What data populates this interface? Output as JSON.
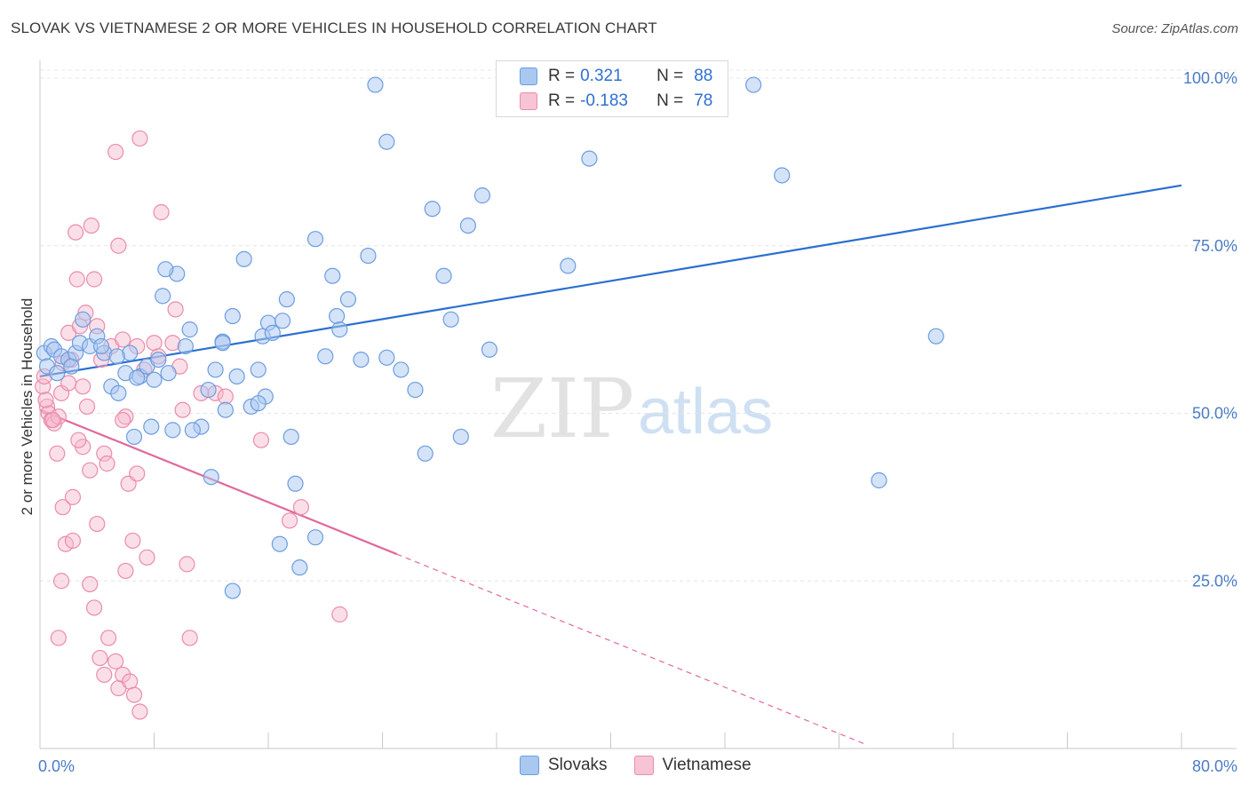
{
  "header": {
    "title": "SLOVAK VS VIETNAMESE 2 OR MORE VEHICLES IN HOUSEHOLD CORRELATION CHART",
    "source": "Source: ZipAtlas.com"
  },
  "legend": {
    "rows": [
      {
        "r_label": "R =",
        "r_value": "0.321",
        "n_label": "N =",
        "n_value": "88"
      },
      {
        "r_label": "R =",
        "r_value": "-0.183",
        "n_label": "N =",
        "n_value": "78"
      }
    ],
    "series_names": [
      "Slovaks",
      "Vietnamese"
    ]
  },
  "watermark": {
    "zip": "ZIP",
    "atlas": "atlas"
  },
  "colors": {
    "slovak_fill": "#a9c8f0",
    "slovak_stroke": "#6c9de0",
    "slovak_line": "#2a6fd0",
    "vietnamese_fill": "#f6b9cc",
    "vietnamese_stroke": "#ea8cab",
    "vietnamese_line": "#e0699a",
    "tick_label": "#4a7cc7",
    "grid": "#e4e4e4"
  },
  "chart_data": {
    "type": "scatter",
    "title": "SLOVAK VS VIETNAMESE 2 OR MORE VEHICLES IN HOUSEHOLD CORRELATION CHART",
    "xlabel": "",
    "ylabel": "2 or more Vehicles in Household",
    "xlim": [
      0,
      80
    ],
    "ylim": [
      0,
      103
    ],
    "x_tick_labels": [
      "0.0%",
      "80.0%"
    ],
    "y_ticks": [
      25,
      50,
      75,
      100
    ],
    "y_tick_labels": [
      "25.0%",
      "50.0%",
      "75.0%",
      "100.0%"
    ],
    "grid": "horizontal dashed",
    "legend_position": "top-center",
    "series": [
      {
        "name": "Slovaks",
        "r": 0.321,
        "n": 88,
        "trend": {
          "x": [
            0,
            80
          ],
          "y": [
            55.5,
            84
          ]
        },
        "points": [
          [
            0.3,
            59
          ],
          [
            0.5,
            57
          ],
          [
            0.8,
            60
          ],
          [
            1.0,
            59.5
          ],
          [
            1.2,
            56
          ],
          [
            1.5,
            58.5
          ],
          [
            2.0,
            58
          ],
          [
            2.2,
            57
          ],
          [
            2.5,
            59
          ],
          [
            2.8,
            60.5
          ],
          [
            3.0,
            64
          ],
          [
            3.5,
            60
          ],
          [
            4.0,
            61.5
          ],
          [
            4.5,
            59
          ],
          [
            5.0,
            54
          ],
          [
            5.5,
            53
          ],
          [
            6.0,
            56
          ],
          [
            6.3,
            59
          ],
          [
            6.6,
            46.5
          ],
          [
            7.0,
            55.5
          ],
          [
            7.5,
            57
          ],
          [
            7.8,
            48
          ],
          [
            8.0,
            55
          ],
          [
            8.3,
            58
          ],
          [
            8.6,
            67.5
          ],
          [
            9.0,
            56
          ],
          [
            9.3,
            47.5
          ],
          [
            9.6,
            70.8
          ],
          [
            10.2,
            60
          ],
          [
            10.5,
            62.5
          ],
          [
            11.3,
            48
          ],
          [
            11.8,
            53.5
          ],
          [
            12.3,
            56.5
          ],
          [
            12.8,
            60.7
          ],
          [
            13.0,
            50.5
          ],
          [
            13.5,
            64.5
          ],
          [
            13.8,
            55.5
          ],
          [
            14.3,
            73
          ],
          [
            14.8,
            51
          ],
          [
            15.3,
            56.5
          ],
          [
            15.6,
            61.5
          ],
          [
            15.8,
            52.5
          ],
          [
            16.0,
            63.5
          ],
          [
            16.3,
            62
          ],
          [
            16.8,
            30.5
          ],
          [
            17.0,
            63.8
          ],
          [
            17.3,
            67
          ],
          [
            17.6,
            46.5
          ],
          [
            17.9,
            39.5
          ],
          [
            18.2,
            27
          ],
          [
            19.3,
            76
          ],
          [
            20.0,
            58.5
          ],
          [
            20.5,
            70.5
          ],
          [
            20.8,
            64.5
          ],
          [
            21.0,
            62.5
          ],
          [
            21.6,
            67
          ],
          [
            22.5,
            58
          ],
          [
            23.0,
            73.5
          ],
          [
            24.3,
            90.5
          ],
          [
            25.3,
            56.5
          ],
          [
            26.3,
            53.5
          ],
          [
            27.0,
            44
          ],
          [
            27.5,
            80.5
          ],
          [
            28.3,
            70.5
          ],
          [
            28.8,
            64
          ],
          [
            29.5,
            46.5
          ],
          [
            31.5,
            59.5
          ],
          [
            37.0,
            72
          ],
          [
            38.5,
            88
          ],
          [
            52.0,
            85.5
          ],
          [
            58.8,
            40
          ],
          [
            62.8,
            61.5
          ],
          [
            12.0,
            40.5
          ],
          [
            13.5,
            23.5
          ],
          [
            19.3,
            31.5
          ],
          [
            23.5,
            99
          ],
          [
            31.0,
            82.5
          ],
          [
            30.0,
            78
          ],
          [
            38.0,
            99.5
          ],
          [
            50.0,
            99
          ],
          [
            24.3,
            58.3
          ],
          [
            12.8,
            60.5
          ],
          [
            4.3,
            60
          ],
          [
            5.4,
            58.5
          ],
          [
            6.8,
            55.3
          ],
          [
            8.8,
            71.5
          ],
          [
            10.7,
            47.5
          ],
          [
            15.3,
            51.5
          ]
        ]
      },
      {
        "name": "Vietnamese",
        "r": -0.183,
        "n": 78,
        "trend_solid": {
          "x": [
            0,
            25
          ],
          "y": [
            50.5,
            29
          ]
        },
        "trend_dashed": {
          "x": [
            25,
            58
          ],
          "y": [
            29,
            0.5
          ]
        },
        "points": [
          [
            0.2,
            54
          ],
          [
            0.3,
            55.5
          ],
          [
            0.5,
            51
          ],
          [
            0.6,
            50
          ],
          [
            0.8,
            49
          ],
          [
            1.0,
            48.5
          ],
          [
            1.2,
            44
          ],
          [
            1.3,
            49.5
          ],
          [
            1.5,
            53
          ],
          [
            1.6,
            36
          ],
          [
            1.8,
            30.5
          ],
          [
            2.0,
            62
          ],
          [
            2.2,
            58
          ],
          [
            2.3,
            37.5
          ],
          [
            2.5,
            77
          ],
          [
            2.6,
            70
          ],
          [
            2.8,
            63
          ],
          [
            3.0,
            54
          ],
          [
            3.2,
            65
          ],
          [
            3.3,
            51
          ],
          [
            3.5,
            41.5
          ],
          [
            3.6,
            78
          ],
          [
            3.8,
            70
          ],
          [
            4.0,
            63
          ],
          [
            4.3,
            58
          ],
          [
            4.5,
            44
          ],
          [
            4.7,
            42.5
          ],
          [
            5.0,
            60
          ],
          [
            5.3,
            89
          ],
          [
            5.5,
            75
          ],
          [
            5.8,
            61
          ],
          [
            6.0,
            49.5
          ],
          [
            6.2,
            39.5
          ],
          [
            6.5,
            31
          ],
          [
            6.8,
            60
          ],
          [
            7.0,
            91
          ],
          [
            7.3,
            56.5
          ],
          [
            7.5,
            28.5
          ],
          [
            8.0,
            60.5
          ],
          [
            8.3,
            58.5
          ],
          [
            8.5,
            80
          ],
          [
            9.5,
            65.5
          ],
          [
            9.8,
            57
          ],
          [
            10.0,
            50.5
          ],
          [
            10.3,
            27.5
          ],
          [
            10.5,
            16.5
          ],
          [
            11.3,
            53
          ],
          [
            12.3,
            53
          ],
          [
            13.0,
            52.5
          ],
          [
            15.5,
            46
          ],
          [
            17.5,
            34
          ],
          [
            18.3,
            36
          ],
          [
            21.0,
            20
          ],
          [
            3.5,
            24.5
          ],
          [
            3.8,
            21
          ],
          [
            4.2,
            13.5
          ],
          [
            4.5,
            11
          ],
          [
            4.8,
            16.5
          ],
          [
            5.3,
            13
          ],
          [
            5.5,
            9
          ],
          [
            5.8,
            11
          ],
          [
            6.0,
            26.5
          ],
          [
            6.3,
            10
          ],
          [
            6.6,
            8
          ],
          [
            7.0,
            5.5
          ],
          [
            1.3,
            16.5
          ],
          [
            1.5,
            25
          ],
          [
            2.3,
            31
          ],
          [
            3.0,
            45
          ],
          [
            2.0,
            54.5
          ],
          [
            1.6,
            57.5
          ],
          [
            0.9,
            49
          ],
          [
            0.4,
            52
          ],
          [
            2.7,
            46
          ],
          [
            4.0,
            33.5
          ],
          [
            5.8,
            49
          ],
          [
            6.8,
            41
          ],
          [
            9.3,
            60.5
          ]
        ]
      }
    ]
  }
}
